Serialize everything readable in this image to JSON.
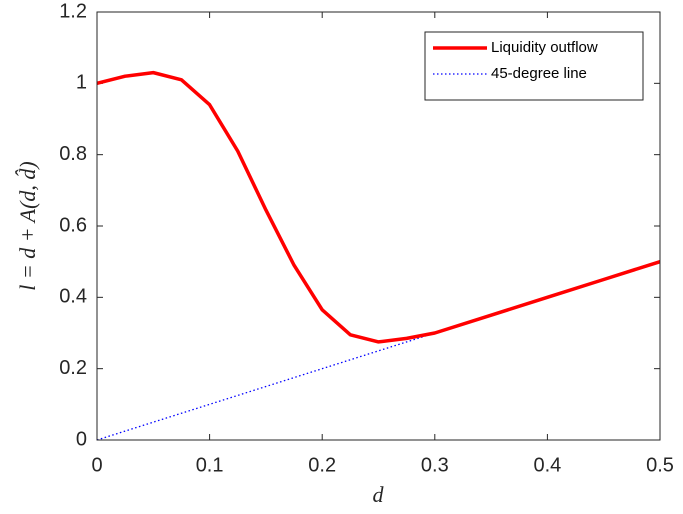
{
  "chart_data": {
    "type": "line",
    "xlabel": "d",
    "ylabel": "l = d + A(d, d̂)",
    "xlim": [
      0,
      0.5
    ],
    "ylim": [
      0,
      1.2
    ],
    "xticks": [
      0,
      0.1,
      0.2,
      0.3,
      0.4,
      0.5
    ],
    "yticks": [
      0,
      0.2,
      0.4,
      0.6,
      0.8,
      1,
      1.2
    ],
    "grid": false,
    "legend": "upper right",
    "series": [
      {
        "name": "Liquidity outflow",
        "color": "#ff0000",
        "style": "solid",
        "x": [
          0,
          0.025,
          0.05,
          0.075,
          0.1,
          0.125,
          0.15,
          0.175,
          0.2,
          0.225,
          0.25,
          0.275,
          0.3,
          0.35,
          0.4,
          0.45,
          0.5
        ],
        "values": [
          1.0,
          1.02,
          1.03,
          1.01,
          0.94,
          0.81,
          0.645,
          0.49,
          0.365,
          0.295,
          0.275,
          0.285,
          0.3,
          0.35,
          0.4,
          0.45,
          0.5
        ]
      },
      {
        "name": "45-degree line",
        "color": "#0000ff",
        "style": "dotted",
        "x": [
          0,
          0.5
        ],
        "values": [
          0,
          0.5
        ]
      }
    ]
  }
}
